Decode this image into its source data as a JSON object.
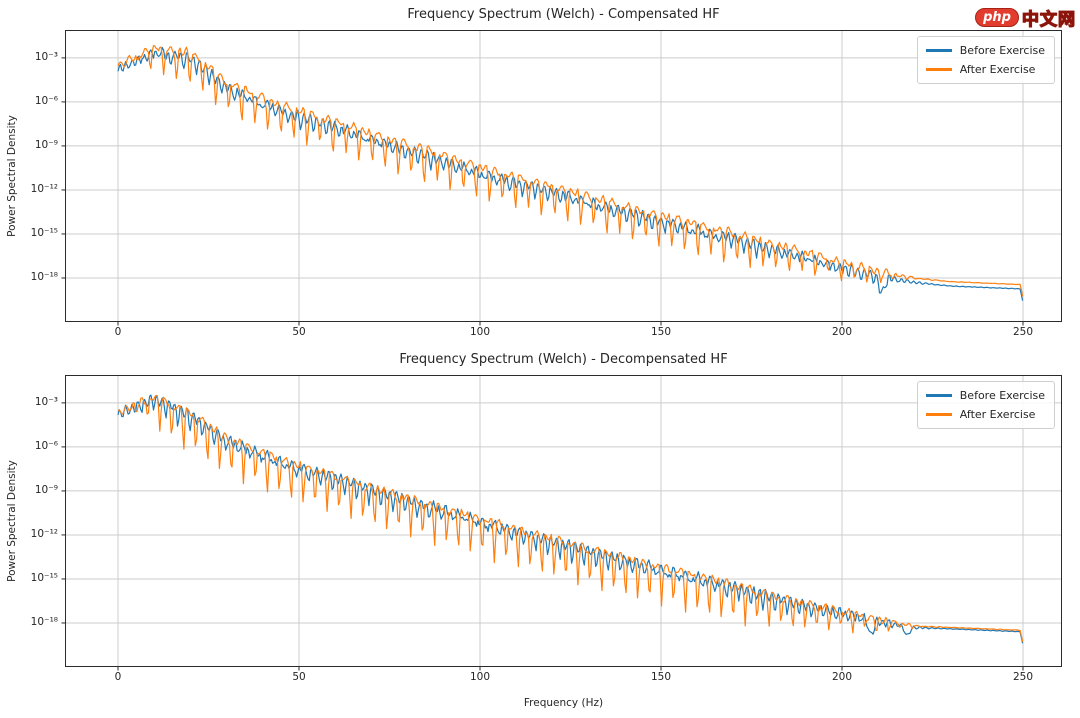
{
  "logo": {
    "badge": "php",
    "site": "中文网",
    "badge_color": "#e23c2e",
    "outline_color": "#8c140a"
  },
  "axes": {
    "ylabel": "Power Spectral Density",
    "xlabel": "Frequency (Hz)",
    "x_tick_labels": [
      "0",
      "50",
      "100",
      "150",
      "200",
      "250"
    ],
    "x_tick_values": [
      0,
      50,
      100,
      150,
      200,
      250
    ],
    "y_tick_labels": [
      "10⁻³",
      "10⁻⁶",
      "10⁻⁹",
      "10⁻¹²",
      "10⁻¹⁵",
      "10⁻¹⁸"
    ],
    "y_tick_exponents": [
      -3,
      -6,
      -9,
      -12,
      -15,
      -18
    ],
    "grid_color": "#cccccc",
    "spine_color": "#2b2b2b",
    "text_color": "#262626"
  },
  "legend": {
    "position": "upper right",
    "entries": [
      {
        "label": "Before Exercise",
        "color": "#1f77b4"
      },
      {
        "label": "After Exercise",
        "color": "#ff7f0e"
      }
    ]
  },
  "chart_data": [
    {
      "type": "line",
      "title": "Frequency Spectrum (Welch) - Compensated HF",
      "xlabel": "",
      "ylabel": "Power Spectral Density",
      "x_range": [
        0,
        250
      ],
      "y_scale": "log10",
      "y_view_log10": [
        -1.1,
        -21.0
      ],
      "grid": true,
      "legend_position": "upper right",
      "end_drop_log10": 0.9,
      "envelope_f": [
        0,
        10,
        20,
        30,
        40,
        50,
        60,
        70,
        80,
        90,
        100,
        110,
        120,
        130,
        140,
        150,
        160,
        170,
        180,
        190,
        200,
        210,
        220,
        230,
        240,
        250
      ],
      "series": [
        {
          "name": "Before Exercise",
          "color": "#1f77b4",
          "envelope_log10": [
            -3.8,
            -2.6,
            -3.0,
            -5.0,
            -6.1,
            -7.0,
            -7.7,
            -8.5,
            -9.3,
            -10.0,
            -10.8,
            -11.5,
            -12.1,
            -12.8,
            -13.5,
            -14.1,
            -14.7,
            -15.3,
            -16.0,
            -16.6,
            -17.3,
            -17.9,
            -18.3,
            -18.55,
            -18.65,
            -18.75
          ],
          "ripple": {
            "amp": 0.3,
            "period": 1.7,
            "spike_depth": 0.55,
            "spike_period": 3.6,
            "noise": 0.12,
            "seed": 7,
            "phase": 0.0
          },
          "notches": [
            {
              "f": 211,
              "depth": 1.0,
              "width": 1.1
            }
          ]
        },
        {
          "name": "After Exercise",
          "color": "#ff7f0e",
          "envelope_log10": [
            -3.5,
            -2.25,
            -2.6,
            -4.6,
            -5.7,
            -6.6,
            -7.3,
            -8.1,
            -8.9,
            -9.6,
            -10.4,
            -11.1,
            -11.7,
            -12.4,
            -13.1,
            -13.7,
            -14.3,
            -14.9,
            -15.6,
            -16.2,
            -16.9,
            -17.55,
            -18.0,
            -18.25,
            -18.35,
            -18.45
          ],
          "ripple": {
            "amp": 0.22,
            "period": 2.3,
            "spike_depth": 2.1,
            "spike_period": 3.6,
            "noise": 0.1,
            "seed": 13,
            "phase": 0.5
          },
          "notches": []
        }
      ]
    },
    {
      "type": "line",
      "title": "Frequency Spectrum (Welch) - Decompensated HF",
      "xlabel": "Frequency (Hz)",
      "ylabel": "Power Spectral Density",
      "x_range": [
        0,
        250
      ],
      "y_scale": "log10",
      "y_view_log10": [
        -1.1,
        -21.0
      ],
      "grid": true,
      "legend_position": "upper right",
      "end_drop_log10": 0.9,
      "envelope_f": [
        0,
        10,
        20,
        30,
        40,
        50,
        60,
        70,
        80,
        90,
        100,
        110,
        120,
        130,
        140,
        150,
        160,
        170,
        180,
        190,
        200,
        210,
        220,
        230,
        240,
        250
      ],
      "series": [
        {
          "name": "Before Exercise",
          "color": "#1f77b4",
          "envelope_log10": [
            -3.8,
            -2.7,
            -3.8,
            -5.5,
            -6.5,
            -7.4,
            -8.1,
            -8.9,
            -9.6,
            -10.3,
            -11.0,
            -11.7,
            -12.4,
            -13.1,
            -13.7,
            -14.3,
            -14.9,
            -15.5,
            -16.2,
            -16.8,
            -17.3,
            -17.9,
            -18.3,
            -18.4,
            -18.5,
            -18.6
          ],
          "ripple": {
            "amp": 0.32,
            "period": 1.7,
            "spike_depth": 0.8,
            "spike_period": 3.3,
            "noise": 0.12,
            "seed": 21,
            "phase": 0.0
          },
          "notches": [
            {
              "f": 208,
              "depth": 0.9,
              "width": 1.1
            },
            {
              "f": 218,
              "depth": 0.6,
              "width": 1.0
            }
          ]
        },
        {
          "name": "After Exercise",
          "color": "#ff7f0e",
          "envelope_log10": [
            -3.65,
            -2.55,
            -3.65,
            -5.35,
            -6.35,
            -7.25,
            -7.95,
            -8.75,
            -9.45,
            -10.15,
            -10.85,
            -11.55,
            -12.25,
            -12.95,
            -13.55,
            -14.15,
            -14.75,
            -15.35,
            -16.05,
            -16.65,
            -17.15,
            -17.75,
            -18.2,
            -18.3,
            -18.4,
            -18.5
          ],
          "ripple": {
            "amp": 0.22,
            "period": 2.1,
            "spike_depth": 2.5,
            "spike_period": 3.3,
            "noise": 0.1,
            "seed": 29,
            "phase": 0.5
          },
          "notches": []
        }
      ]
    }
  ]
}
